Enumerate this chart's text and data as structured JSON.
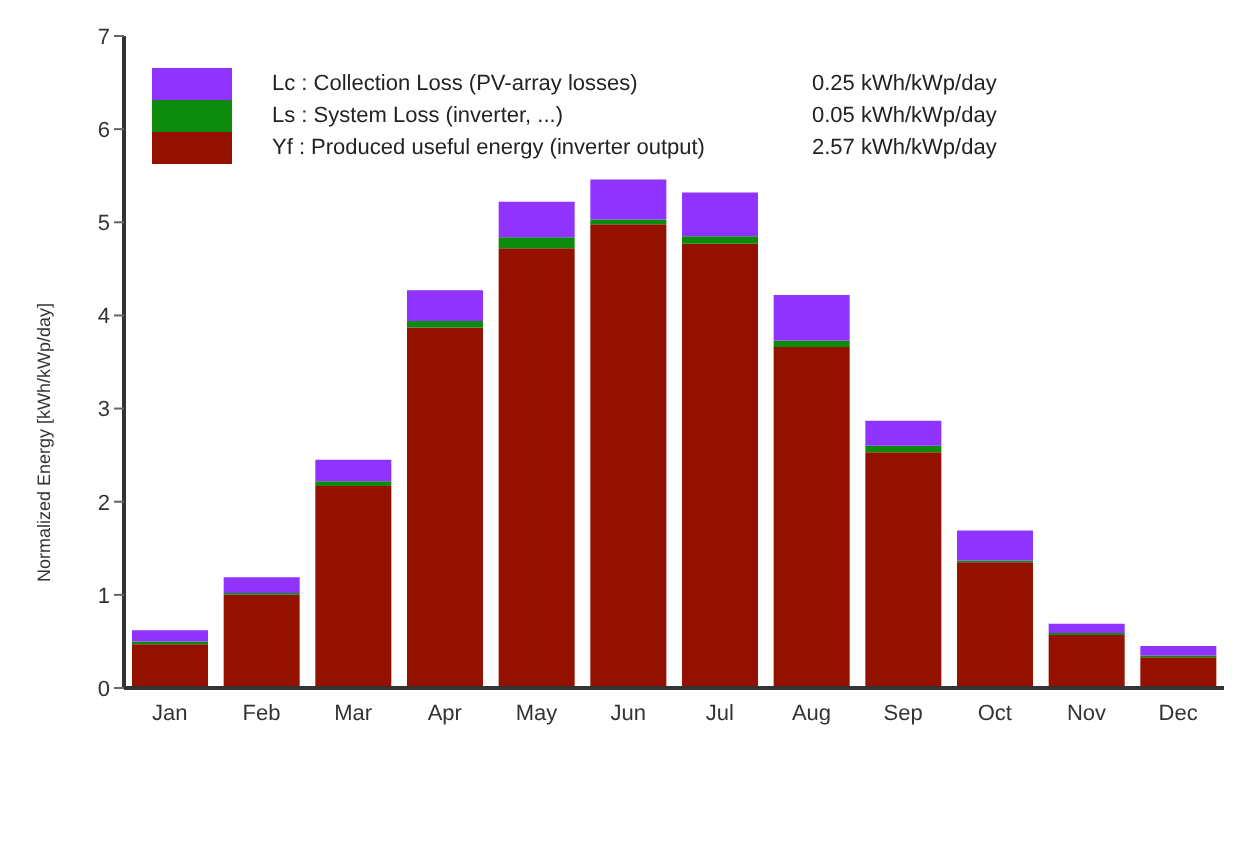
{
  "chart_data": {
    "type": "bar",
    "ylabel": "Normalized Energy  [kWh/kWp/day]",
    "categories": [
      "Jan",
      "Feb",
      "Mar",
      "Apr",
      "May",
      "Jun",
      "Jul",
      "Aug",
      "Sep",
      "Oct",
      "Nov",
      "Dec"
    ],
    "stacked": true,
    "series": [
      {
        "name": "Yf : Produced useful energy  (inverter output)",
        "color": "#941100",
        "values": [
          0.47,
          1.0,
          2.17,
          3.87,
          4.72,
          4.98,
          4.77,
          3.66,
          2.53,
          1.35,
          0.57,
          0.33
        ]
      },
      {
        "name": "Ls : System Loss  (inverter, ...)",
        "color": "#0b8a0b",
        "values": [
          0.03,
          0.02,
          0.05,
          0.07,
          0.12,
          0.05,
          0.08,
          0.07,
          0.07,
          0.02,
          0.02,
          0.02
        ]
      },
      {
        "name": "Lc : Collection Loss (PV-array losses)",
        "color": "#9033ff",
        "values": [
          0.12,
          0.17,
          0.23,
          0.33,
          0.38,
          0.43,
          0.47,
          0.49,
          0.27,
          0.32,
          0.1,
          0.1
        ]
      }
    ],
    "annotations": [
      "2.57 kWh/kWp/day",
      "0.05 kWh/kWp/day",
      "0.25 kWh/kWp/day"
    ],
    "ylim": [
      0,
      7
    ],
    "yticks": [
      0,
      1,
      2,
      3,
      4,
      5,
      6,
      7
    ],
    "legend": "top left"
  }
}
